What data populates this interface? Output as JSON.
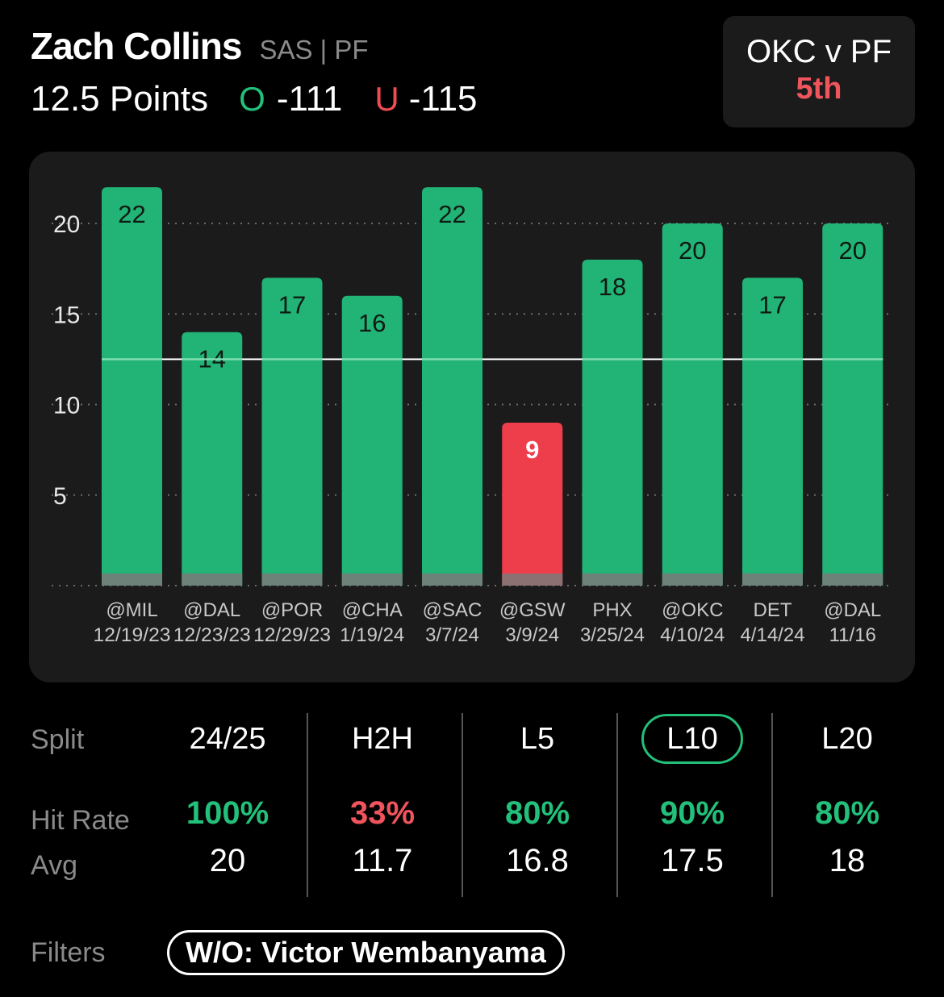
{
  "player": {
    "name": "Zach Collins",
    "meta": "SAS | PF"
  },
  "line": {
    "label": "12.5 Points",
    "over_mark": "O",
    "over_odds": "-111",
    "under_mark": "U",
    "under_odds": "-115"
  },
  "matchup": {
    "title": "OKC v PF",
    "rank": "5th"
  },
  "colors": {
    "over": "#22b376",
    "under": "#ee3e4b",
    "accent_green": "#22c07a",
    "accent_red": "#f0545c",
    "card": "#1b1b1b"
  },
  "chart_data": {
    "type": "bar",
    "line_value": 12.5,
    "ylim": [
      0,
      22
    ],
    "yticks": [
      5,
      10,
      15,
      20
    ],
    "games": [
      {
        "opp": "@MIL",
        "date": "12/19/23",
        "value": 22,
        "hit": true
      },
      {
        "opp": "@DAL",
        "date": "12/23/23",
        "value": 14,
        "hit": true
      },
      {
        "opp": "@POR",
        "date": "12/29/23",
        "value": 17,
        "hit": true
      },
      {
        "opp": "@CHA",
        "date": "1/19/24",
        "value": 16,
        "hit": true
      },
      {
        "opp": "@SAC",
        "date": "3/7/24",
        "value": 22,
        "hit": true
      },
      {
        "opp": "@GSW",
        "date": "3/9/24",
        "value": 9,
        "hit": false
      },
      {
        "opp": "PHX",
        "date": "3/25/24",
        "value": 18,
        "hit": true
      },
      {
        "opp": "@OKC",
        "date": "4/10/24",
        "value": 20,
        "hit": true
      },
      {
        "opp": "DET",
        "date": "4/14/24",
        "value": 17,
        "hit": true
      },
      {
        "opp": "@DAL",
        "date": "11/16",
        "value": 20,
        "hit": true
      }
    ]
  },
  "splits": {
    "split_label": "Split",
    "hit_label": "Hit Rate",
    "avg_label": "Avg",
    "columns": [
      {
        "name": "24/25",
        "hit": "100%",
        "hit_color": "#22c07a",
        "avg": "20",
        "active": false
      },
      {
        "name": "H2H",
        "hit": "33%",
        "hit_color": "#f0545c",
        "avg": "11.7",
        "active": false
      },
      {
        "name": "L5",
        "hit": "80%",
        "hit_color": "#22c07a",
        "avg": "16.8",
        "active": false
      },
      {
        "name": "L10",
        "hit": "90%",
        "hit_color": "#22c07a",
        "avg": "17.5",
        "active": true
      },
      {
        "name": "L20",
        "hit": "80%",
        "hit_color": "#22c07a",
        "avg": "18",
        "active": false
      }
    ]
  },
  "filters": {
    "label": "Filters",
    "chip": "W/O: Victor Wembanyama"
  }
}
